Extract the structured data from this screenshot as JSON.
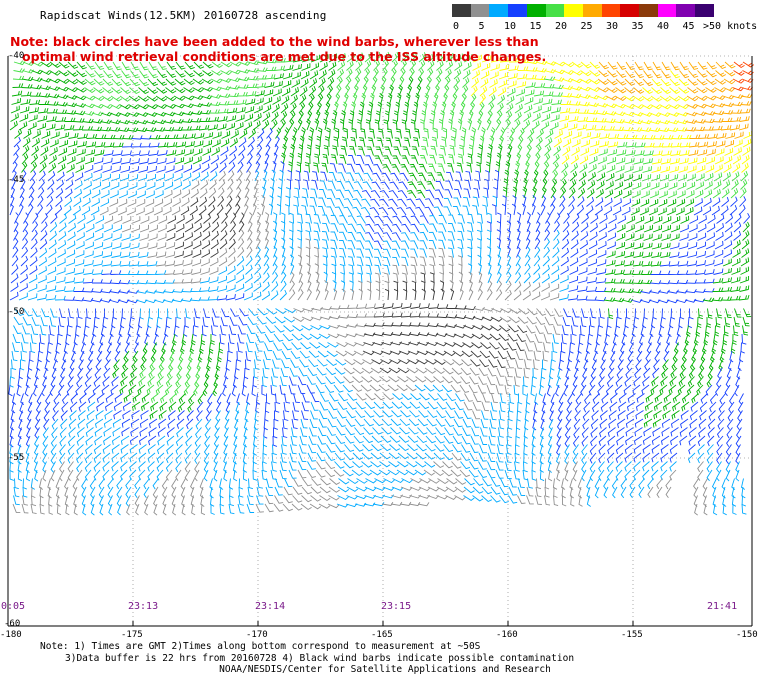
{
  "header": {
    "title": "Rapidscat Winds(12.5KM) 20160728 ascending"
  },
  "legend": {
    "colors": [
      "#3a3a3a",
      "#909090",
      "#00aaff",
      "#1540ff",
      "#00b000",
      "#46e046",
      "#ffff00",
      "#ffaa00",
      "#ff4400",
      "#d60000",
      "#8b3a0a",
      "#ff00ff",
      "#8000b0",
      "#3a0070"
    ],
    "labels": [
      "0",
      "5",
      "10",
      "15",
      "20",
      "25",
      "30",
      "35",
      "40",
      "45",
      ">50 knots"
    ]
  },
  "note": {
    "line1": "Note: black circles have been added to the wind barbs, wherever less than",
    "line2": "optimal wind retrieval conditions are met due to the ISS altitude changes."
  },
  "axes": {
    "lat_labels": [
      "-40",
      "-45",
      "-50",
      "-55",
      "-60"
    ],
    "lon_labels": [
      "-180",
      "-175",
      "-170",
      "-165",
      "-160",
      "-155",
      "-150"
    ]
  },
  "times": [
    "0:05",
    "23:13",
    "23:14",
    "23:15",
    "21:41"
  ],
  "footer": {
    "line1": "Note: 1) Times are GMT 2)Times along bottom correspond to measurement at ~50S",
    "line2": "3)Data buffer is 22 hrs from 20160728 4) Black wind barbs indicate possible contamination",
    "line3": "NOAA/NESDIS/Center for Satellite Applications and Research"
  }
}
